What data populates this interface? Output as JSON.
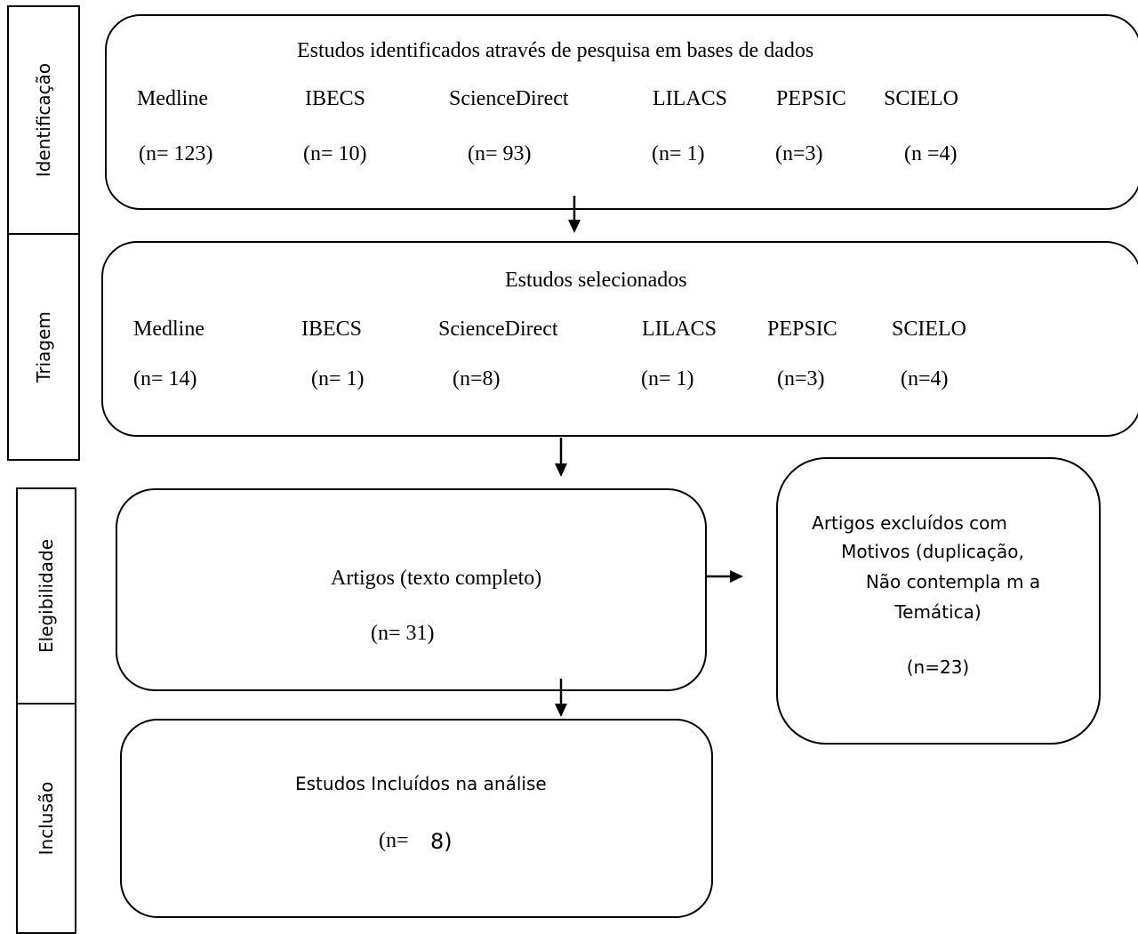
{
  "stages": {
    "identificacao": "Identificação",
    "triagem": "Triagem",
    "elegibilidade": "Elegibilidade",
    "inclusao": "Inclusão"
  },
  "identification_box": {
    "title": "Estudos identificados através de pesquisa em bases de dados",
    "databases": [
      {
        "name": "Medline",
        "count": "(n= 123)"
      },
      {
        "name": "IBECS",
        "count": "(n= 10)"
      },
      {
        "name": "ScienceDirect",
        "count": "(n= 93)"
      },
      {
        "name": "LILACS",
        "count": "(n= 1)"
      },
      {
        "name": "PEPSIC",
        "count": "(n=3)"
      },
      {
        "name": "SCIELO",
        "count": "(n =4)"
      }
    ]
  },
  "screening_box": {
    "title": "Estudos selecionados",
    "databases": [
      {
        "name": "Medline",
        "count": "(n= 14)"
      },
      {
        "name": "IBECS",
        "count": "(n= 1)"
      },
      {
        "name": "ScienceDirect",
        "count": "(n=8)"
      },
      {
        "name": "LILACS",
        "count": "(n= 1)"
      },
      {
        "name": "PEPSIC",
        "count": "(n=3)"
      },
      {
        "name": "SCIELO",
        "count": "(n=4)"
      }
    ]
  },
  "eligibility_box": {
    "title": "Artigos (texto completo)",
    "count": "(n= 31)"
  },
  "excluded_box": {
    "lines": [
      "Artigos excluídos com",
      "Motivos (duplicação,",
      "Não contempla  m a",
      "Temática)"
    ],
    "count": "(n=23)"
  },
  "inclusion_box": {
    "title": "Estudos Incluídos na análise",
    "count_prefix": "(n=",
    "count_value": "8)"
  }
}
